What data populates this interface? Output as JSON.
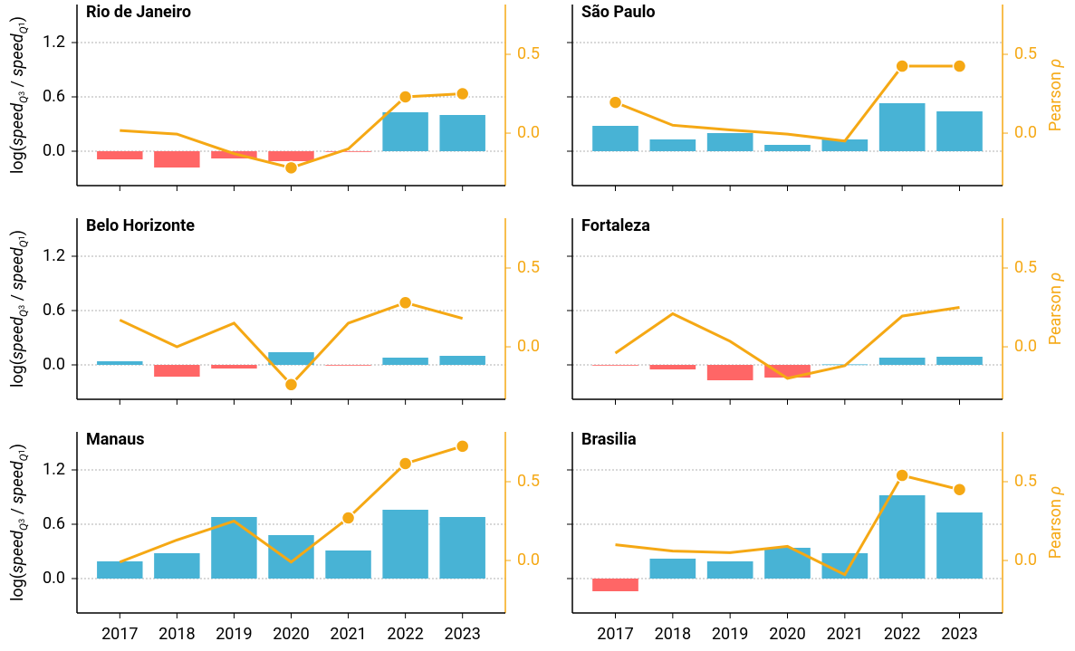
{
  "chart_data": [
    {
      "type": "bar_line",
      "title": "Rio de Janeiro",
      "ylabel": [
        "log(",
        "speed",
        "Q",
        "3",
        " / ",
        "speed",
        "Q",
        "1",
        ")"
      ],
      "bars": {
        "values": [
          -0.09,
          -0.18,
          -0.08,
          -0.11,
          -0.005,
          0.43,
          0.4
        ],
        "color_positive": "#48b3d5",
        "color_negative": "#ff6666"
      },
      "line": {
        "values": [
          0.017,
          -0.006,
          -0.13,
          -0.22,
          -0.1,
          0.23,
          0.25
        ],
        "color": "#f5a814",
        "axis": "y2",
        "markers": [
          false,
          false,
          false,
          true,
          false,
          true,
          true
        ]
      },
      "ylim": [
        -0.38,
        1.62
      ],
      "yticks": [
        {
          "value": 0,
          "label": "0.0"
        },
        {
          "value": 0.6,
          "label": "0.6"
        },
        {
          "value": 1.2,
          "label": "1.2"
        }
      ],
      "y2lim": [
        -0.333,
        0.816
      ],
      "y2ticks": [
        {
          "value": 0,
          "label": "0.0"
        },
        {
          "value": 0.5,
          "label": "0.5"
        }
      ],
      "grid": true
    },
    {
      "type": "bar_line",
      "title": "São Paulo",
      "y2label": [
        "Pearson ",
        "ρ"
      ],
      "bars": {
        "values": [
          0.28,
          0.13,
          0.2,
          0.07,
          0.13,
          0.53,
          0.44
        ],
        "color_positive": "#48b3d5",
        "color_negative": "#ff6666"
      },
      "line": {
        "values": [
          0.195,
          0.05,
          0.02,
          -0.006,
          -0.05,
          0.425,
          0.425
        ],
        "color": "#f5a814",
        "axis": "y2",
        "markers": [
          true,
          false,
          false,
          false,
          false,
          true,
          true
        ]
      },
      "ylim": [
        -0.38,
        1.62
      ],
      "yticks": [
        {
          "value": 0,
          "label": "0.0"
        },
        {
          "value": 0.6,
          "label": "0.6"
        },
        {
          "value": 1.2,
          "label": "1.2"
        }
      ],
      "y2lim": [
        -0.333,
        0.816
      ],
      "y2ticks": [
        {
          "value": 0,
          "label": "0.0"
        },
        {
          "value": 0.5,
          "label": "0.5"
        }
      ],
      "grid": true
    },
    {
      "type": "bar_line",
      "title": "Belo Horizonte",
      "ylabel": [
        "log(",
        "speed",
        "Q",
        "3",
        " / ",
        "speed",
        "Q",
        "1",
        ")"
      ],
      "bars": {
        "values": [
          0.04,
          -0.13,
          -0.04,
          0.14,
          -0.005,
          0.08,
          0.1
        ],
        "color_positive": "#48b3d5",
        "color_negative": "#ff6666"
      },
      "line": {
        "values": [
          0.17,
          0.0,
          0.15,
          -0.24,
          0.15,
          0.28,
          0.18
        ],
        "color": "#f5a814",
        "axis": "y2",
        "markers": [
          false,
          false,
          false,
          true,
          false,
          true,
          false
        ]
      },
      "ylim": [
        -0.38,
        1.62
      ],
      "yticks": [
        {
          "value": 0,
          "label": "0.0"
        },
        {
          "value": 0.6,
          "label": "0.6"
        },
        {
          "value": 1.2,
          "label": "1.2"
        }
      ],
      "y2lim": [
        -0.333,
        0.816
      ],
      "y2ticks": [
        {
          "value": 0,
          "label": "0.0"
        },
        {
          "value": 0.5,
          "label": "0.5"
        }
      ],
      "grid": true
    },
    {
      "type": "bar_line",
      "title": "Fortaleza",
      "y2label": [
        "Pearson ",
        "ρ"
      ],
      "bars": {
        "values": [
          -0.005,
          -0.05,
          -0.17,
          -0.14,
          0.006,
          0.08,
          0.09
        ],
        "color_positive": "#48b3d5",
        "color_negative": "#ff6666"
      },
      "line": {
        "values": [
          -0.04,
          0.21,
          0.035,
          -0.2,
          -0.12,
          0.195,
          0.25
        ],
        "color": "#f5a814",
        "axis": "y2",
        "markers": [
          false,
          false,
          false,
          false,
          false,
          false,
          false
        ]
      },
      "ylim": [
        -0.38,
        1.62
      ],
      "yticks": [
        {
          "value": 0,
          "label": "0.0"
        },
        {
          "value": 0.6,
          "label": "0.6"
        },
        {
          "value": 1.2,
          "label": "1.2"
        }
      ],
      "y2lim": [
        -0.333,
        0.816
      ],
      "y2ticks": [
        {
          "value": 0,
          "label": "0.0"
        },
        {
          "value": 0.5,
          "label": "0.5"
        }
      ],
      "grid": true
    },
    {
      "type": "bar_line",
      "title": "Manaus",
      "categories": [
        "2017",
        "2018",
        "2019",
        "2020",
        "2021",
        "2022",
        "2023"
      ],
      "ylabel": [
        "log(",
        "speed",
        "Q",
        "3",
        " / ",
        "speed",
        "Q",
        "1",
        ")"
      ],
      "bars": {
        "values": [
          0.19,
          0.28,
          0.68,
          0.48,
          0.31,
          0.76,
          0.68
        ],
        "color_positive": "#48b3d5",
        "color_negative": "#ff6666"
      },
      "line": {
        "values": [
          -0.01,
          0.13,
          0.25,
          -0.01,
          0.27,
          0.615,
          0.725
        ],
        "color": "#f5a814",
        "axis": "y2",
        "markers": [
          false,
          false,
          false,
          false,
          true,
          true,
          true
        ]
      },
      "ylim": [
        -0.38,
        1.62
      ],
      "yticks": [
        {
          "value": 0,
          "label": "0.0"
        },
        {
          "value": 0.6,
          "label": "0.6"
        },
        {
          "value": 1.2,
          "label": "1.2"
        }
      ],
      "y2lim": [
        -0.333,
        0.816
      ],
      "y2ticks": [
        {
          "value": 0,
          "label": "0.0"
        },
        {
          "value": 0.5,
          "label": "0.5"
        }
      ],
      "grid": true
    },
    {
      "type": "bar_line",
      "title": "Brasilia",
      "categories": [
        "2017",
        "2018",
        "2019",
        "2020",
        "2021",
        "2022",
        "2023"
      ],
      "y2label": [
        "Pearson ",
        "ρ"
      ],
      "bars": {
        "values": [
          -0.14,
          0.22,
          0.19,
          0.34,
          0.28,
          0.92,
          0.73
        ],
        "color_positive": "#48b3d5",
        "color_negative": "#ff6666"
      },
      "line": {
        "values": [
          0.1,
          0.06,
          0.05,
          0.09,
          -0.09,
          0.54,
          0.45
        ],
        "color": "#f5a814",
        "axis": "y2",
        "markers": [
          false,
          false,
          false,
          false,
          false,
          true,
          true
        ]
      },
      "ylim": [
        -0.38,
        1.62
      ],
      "yticks": [
        {
          "value": 0,
          "label": "0.0"
        },
        {
          "value": 0.6,
          "label": "0.6"
        },
        {
          "value": 1.2,
          "label": "1.2"
        }
      ],
      "y2lim": [
        -0.333,
        0.816
      ],
      "y2ticks": [
        {
          "value": 0,
          "label": "0.0"
        },
        {
          "value": 0.5,
          "label": "0.5"
        }
      ],
      "grid": true
    }
  ]
}
